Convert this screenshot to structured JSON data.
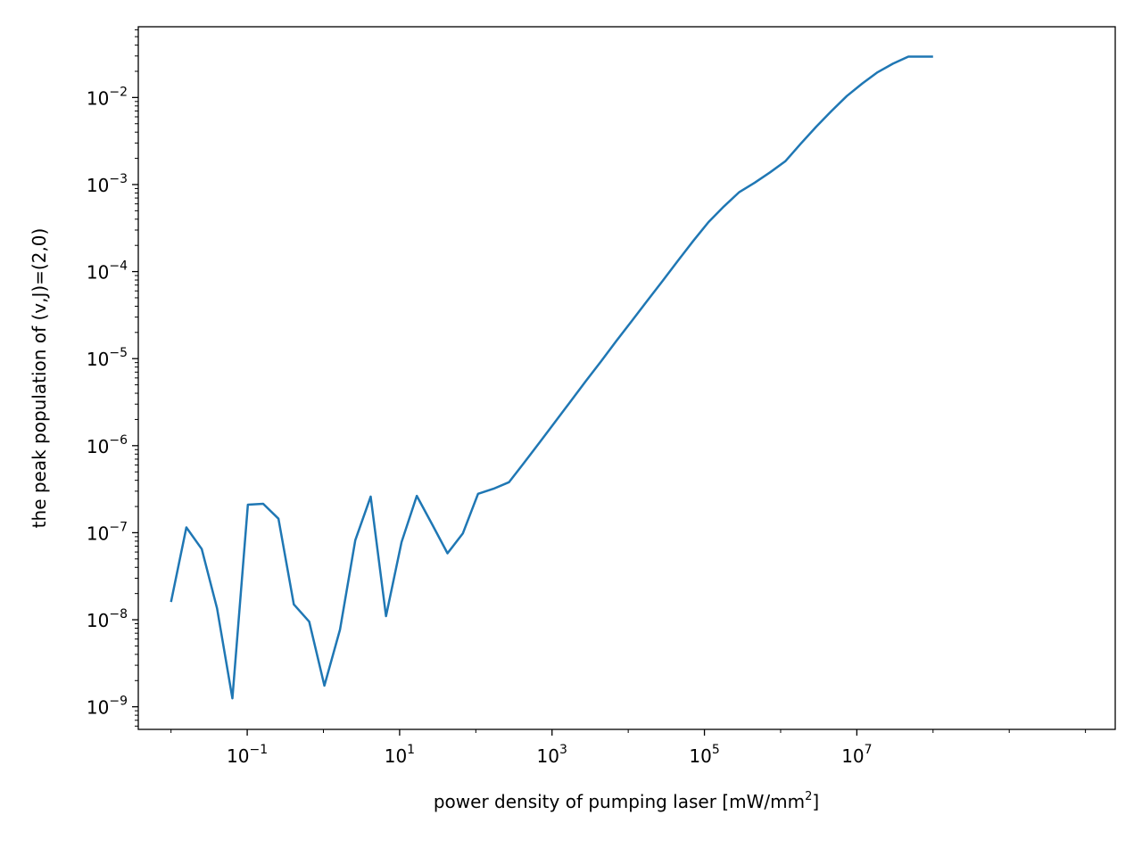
{
  "chart_data": {
    "type": "line",
    "title": "",
    "xlabel_main": "power density of pumping laser [mW/mm",
    "xlabel_sup": "2",
    "xlabel_end": "]",
    "ylabel": "the peak population of (v,J)=(2,0)",
    "xscale": "log",
    "yscale": "log",
    "xlim": [
      0.00372,
      24600000000
    ],
    "ylim": [
      5.5e-10,
      0.065
    ],
    "grid": false,
    "legend": "none",
    "line_color": "#1f77b4",
    "xticks": [
      {
        "value": 0.1,
        "base": "10",
        "exp": "−1"
      },
      {
        "value": 10,
        "base": "10",
        "exp": "1"
      },
      {
        "value": 1000,
        "base": "10",
        "exp": "3"
      },
      {
        "value": 100000,
        "base": "10",
        "exp": "5"
      },
      {
        "value": 10000000,
        "base": "10",
        "exp": "7"
      }
    ],
    "yticks": [
      {
        "value": 1e-09,
        "base": "10",
        "exp": "−9"
      },
      {
        "value": 1e-08,
        "base": "10",
        "exp": "−8"
      },
      {
        "value": 1e-07,
        "base": "10",
        "exp": "−7"
      },
      {
        "value": 1e-06,
        "base": "10",
        "exp": "−6"
      },
      {
        "value": 1e-05,
        "base": "10",
        "exp": "−5"
      },
      {
        "value": 0.0001,
        "base": "10",
        "exp": "−4"
      },
      {
        "value": 0.001,
        "base": "10",
        "exp": "−3"
      },
      {
        "value": 0.01,
        "base": "10",
        "exp": "−2"
      }
    ],
    "series": [
      {
        "x": [
          0.01,
          0.0159,
          0.0253,
          0.0402,
          0.0639,
          0.102,
          0.162,
          0.257,
          0.409,
          0.651,
          1.03,
          1.65,
          2.62,
          4.17,
          6.63,
          10.6,
          16.8,
          26.7,
          42.5,
          67.5,
          107,
          171,
          272,
          432,
          688,
          1090,
          1740,
          2770,
          4400,
          7000,
          11100,
          17700,
          28200,
          44800,
          71300,
          113000,
          180000,
          287000,
          456000,
          726000,
          1150000,
          1840000,
          2920000,
          4650000,
          7390000,
          11800000,
          18700000,
          29800000,
          47400000,
          75400000,
          100000000
        ],
        "y": [
          1.6e-08,
          1.15e-07,
          6.5e-08,
          1.35e-08,
          1.25e-09,
          2.1e-07,
          2.15e-07,
          1.45e-07,
          1.5e-08,
          9.5e-09,
          1.75e-09,
          7.7e-09,
          8.2e-08,
          2.6e-07,
          1.1e-08,
          7.8e-08,
          2.65e-07,
          1.25e-07,
          5.8e-08,
          9.8e-08,
          2.8e-07,
          3.2e-07,
          3.8e-07,
          6.4e-07,
          1.09e-06,
          1.86e-06,
          3.2e-06,
          5.5e-06,
          9.3e-06,
          1.6e-05,
          2.7e-05,
          4.6e-05,
          7.8e-05,
          0.000133,
          0.000225,
          0.00037,
          0.00056,
          0.00082,
          0.00105,
          0.00138,
          0.00185,
          0.00295,
          0.0046,
          0.007,
          0.0104,
          0.0145,
          0.0195,
          0.0245,
          0.0295,
          0.0295,
          0.0295
        ]
      }
    ]
  }
}
